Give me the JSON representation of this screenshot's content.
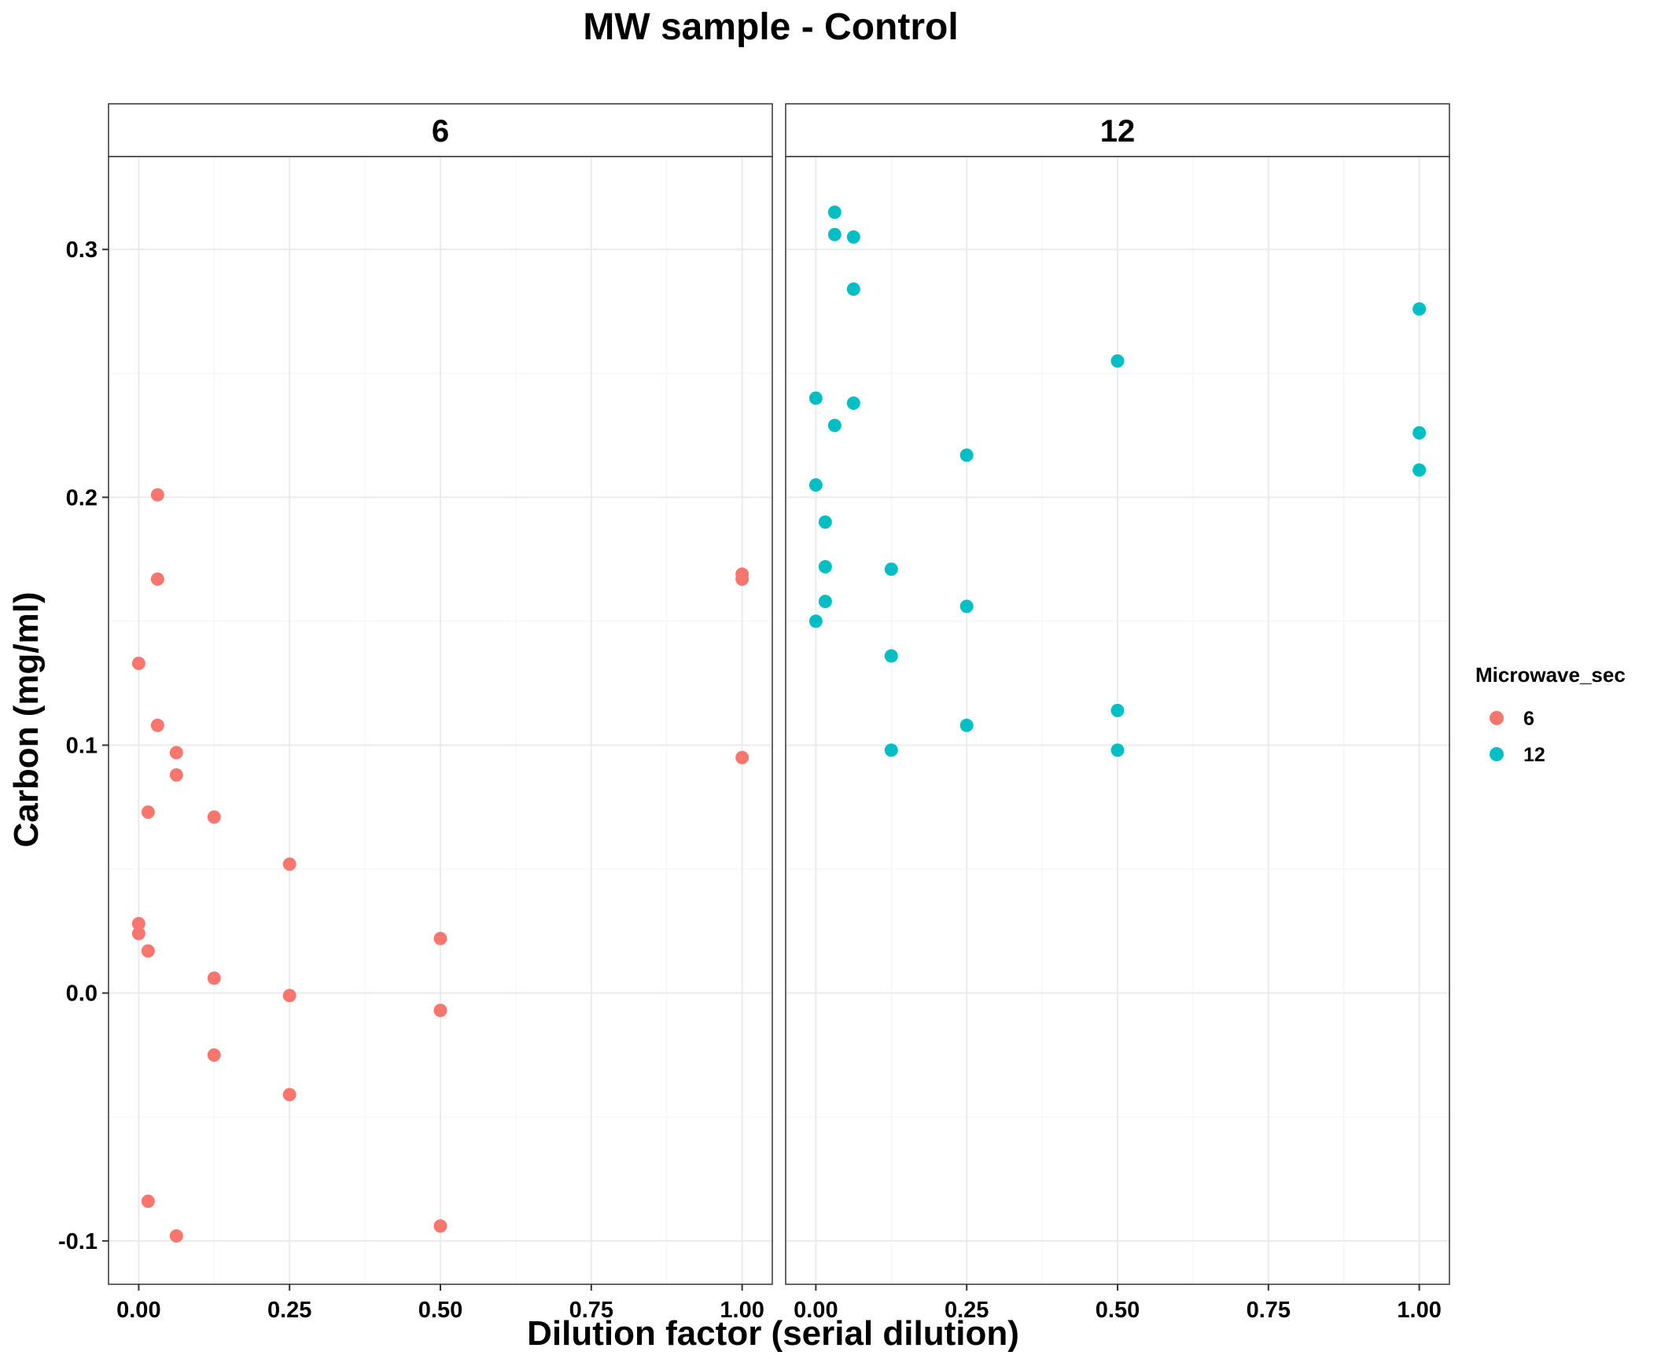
{
  "chart_data": {
    "type": "scatter",
    "title": "MW sample - Control",
    "xlabel": "Dilution factor (serial dilution)",
    "ylabel": "Carbon (mg/ml)",
    "xlim": [
      -0.05,
      1.05
    ],
    "ylim": [
      -0.1175,
      0.3375
    ],
    "x_ticks": [
      0,
      0.25,
      0.5,
      0.75,
      1
    ],
    "x_tick_labels": [
      "0.00",
      "0.25",
      "0.50",
      "0.75",
      "1.00"
    ],
    "y_ticks": [
      -0.1,
      0,
      0.1,
      0.2,
      0.3
    ],
    "y_tick_labels": [
      "-0.1",
      "0.0",
      "0.1",
      "0.2",
      "0.3"
    ],
    "grid": true,
    "legend": {
      "title": "Microwave_sec",
      "position": "right",
      "entries": [
        {
          "label": "6",
          "color": "#F8766D"
        },
        {
          "label": "12",
          "color": "#00BFC4"
        }
      ]
    },
    "facets": [
      {
        "label": "6",
        "color": "#F8766D",
        "x": [
          0,
          0,
          0,
          0.015625,
          0.015625,
          0.015625,
          0.03125,
          0.03125,
          0.03125,
          0.0625,
          0.0625,
          0.0625,
          0.125,
          0.125,
          0.125,
          0.25,
          0.25,
          0.25,
          0.5,
          0.5,
          0.5,
          1,
          1,
          1
        ],
        "y": [
          0.133,
          0.028,
          0.024,
          0.073,
          0.017,
          -0.084,
          0.201,
          0.167,
          0.108,
          0.097,
          0.088,
          -0.098,
          0.071,
          0.006,
          -0.025,
          0.052,
          -0.001,
          -0.041,
          0.022,
          -0.007,
          -0.094,
          0.169,
          0.167,
          0.095
        ]
      },
      {
        "label": "12",
        "color": "#00BFC4",
        "x": [
          0,
          0,
          0,
          0.015625,
          0.015625,
          0.015625,
          0.03125,
          0.03125,
          0.03125,
          0.0625,
          0.0625,
          0.0625,
          0.125,
          0.125,
          0.125,
          0.25,
          0.25,
          0.25,
          0.5,
          0.5,
          0.5,
          1,
          1,
          1
        ],
        "y": [
          0.24,
          0.205,
          0.15,
          0.19,
          0.172,
          0.158,
          0.315,
          0.306,
          0.229,
          0.305,
          0.284,
          0.238,
          0.171,
          0.136,
          0.098,
          0.217,
          0.156,
          0.108,
          0.255,
          0.114,
          0.098,
          0.276,
          0.226,
          0.211
        ]
      }
    ]
  }
}
